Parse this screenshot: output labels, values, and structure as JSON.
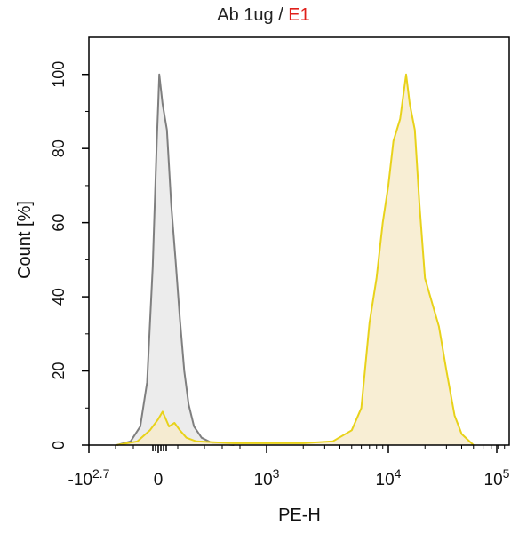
{
  "title": {
    "main": "Ab 1ug",
    "separator": " / ",
    "accent": "E1",
    "accent_color": "#e0201b"
  },
  "chart_data": {
    "type": "area",
    "xlabel": "PE-H",
    "ylabel": "Count [%]",
    "x_scale": "biexponential",
    "xlim_labels": [
      "-10^2.7",
      "10^5"
    ],
    "ylim": [
      0,
      110
    ],
    "y_ticks": [
      0,
      20,
      40,
      60,
      80,
      100
    ],
    "x_ticks": [
      {
        "value": "-10^2.7",
        "base": "-10",
        "exp": "2.7"
      },
      {
        "value": "0",
        "base": "0",
        "exp": ""
      },
      {
        "value": "10^3",
        "base": "10",
        "exp": "3"
      },
      {
        "value": "10^4",
        "base": "10",
        "exp": "4"
      },
      {
        "value": "10^5",
        "base": "10",
        "exp": "5"
      }
    ],
    "grid": false,
    "series": [
      {
        "color": "#7f7f7f",
        "fill": "#ececec",
        "points": [
          [
            "-300",
            0
          ],
          [
            "-200",
            1
          ],
          [
            "-130",
            5
          ],
          [
            "-80",
            17
          ],
          [
            "-40",
            48
          ],
          [
            "-10",
            82
          ],
          [
            "0",
            92
          ],
          [
            "10",
            100
          ],
          [
            "40",
            92
          ],
          [
            "80",
            85
          ],
          [
            "120",
            65
          ],
          [
            "160",
            50
          ],
          [
            "200",
            34
          ],
          [
            "240",
            20
          ],
          [
            "280",
            11
          ],
          [
            "330",
            5
          ],
          [
            "400",
            2
          ],
          [
            "500",
            0.5
          ],
          [
            "700",
            0
          ]
        ]
      },
      {
        "color": "#e8d21a",
        "fill": "#f7ebcc",
        "points": [
          [
            "-300",
            0
          ],
          [
            "-150",
            1
          ],
          [
            "-60",
            4
          ],
          [
            "0",
            7
          ],
          [
            "40",
            9
          ],
          [
            "100",
            5
          ],
          [
            "150",
            6
          ],
          [
            "200",
            4
          ],
          [
            "260",
            2
          ],
          [
            "350",
            1
          ],
          [
            "700",
            0.5
          ],
          [
            "2000",
            0.5
          ],
          [
            "3500",
            1
          ],
          [
            "5000",
            4
          ],
          [
            "6000",
            10
          ],
          [
            "7000",
            33
          ],
          [
            "8000",
            45
          ],
          [
            "9000",
            60
          ],
          [
            "10000",
            70
          ],
          [
            "11000",
            82
          ],
          [
            "12500",
            88
          ],
          [
            "14000",
            100
          ],
          [
            "15000",
            92
          ],
          [
            "16500",
            85
          ],
          [
            "18000",
            65
          ],
          [
            "20000",
            45
          ],
          [
            "23000",
            38
          ],
          [
            "26000",
            32
          ],
          [
            "30000",
            20
          ],
          [
            "35000",
            8
          ],
          [
            "40000",
            3
          ],
          [
            "50000",
            0
          ]
        ]
      }
    ]
  }
}
